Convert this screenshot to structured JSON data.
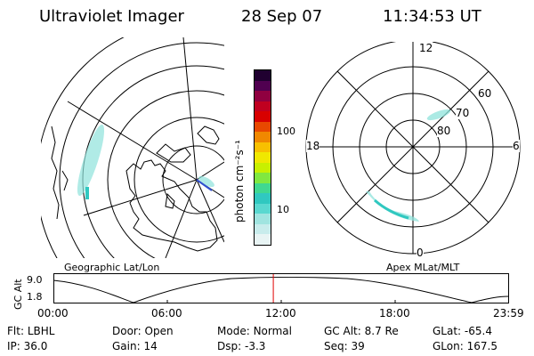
{
  "header": {
    "instrument": "Ultraviolet Imager",
    "date": "28 Sep 07",
    "time": "11:34:53 UT"
  },
  "colorbar": {
    "unit_label": "photon cm⁻²s⁻¹",
    "ticks": [
      "100",
      "10"
    ],
    "colors": [
      "#e8f4f4",
      "#c8ecec",
      "#a0e4e0",
      "#5ad8d0",
      "#30c8c0",
      "#40d890",
      "#80e840",
      "#c8f000",
      "#f0e800",
      "#f8c000",
      "#f08800",
      "#e84800",
      "#d80000",
      "#c00020",
      "#900040",
      "#500050",
      "#200030"
    ]
  },
  "left_panel": {
    "label": "Geographic Lat/Lon"
  },
  "right_panel": {
    "label": "Apex MLat/MLT",
    "mlt_labels": {
      "top": "12",
      "bottom": "0",
      "left": "18",
      "right": "6"
    },
    "lat_labels": [
      "60",
      "70",
      "80"
    ]
  },
  "altitude_plot": {
    "ylabel": "GC Alt",
    "y_ticks": [
      "9.0",
      "1.8"
    ],
    "x_ticks": [
      "00:00",
      "06:00",
      "12:00",
      "18:00",
      "23:59"
    ],
    "current_time_fraction": 0.4826
  },
  "status": {
    "row1": [
      {
        "key": "Flt:",
        "value": "LBHL"
      },
      {
        "key": "Door:",
        "value": "Open"
      },
      {
        "key": "Mode:",
        "value": "Normal"
      },
      {
        "key": "GC Alt:",
        "value": "8.7 Re"
      },
      {
        "key": "GLat:",
        "value": "-65.4"
      }
    ],
    "row2": [
      {
        "key": "IP:",
        "value": "36.0"
      },
      {
        "key": "Gain:",
        "value": "14"
      },
      {
        "key": "Dsp:",
        "value": "-3.3"
      },
      {
        "key": "Seq:",
        "value": "39"
      },
      {
        "key": "GLon:",
        "value": "167.5"
      }
    ]
  }
}
